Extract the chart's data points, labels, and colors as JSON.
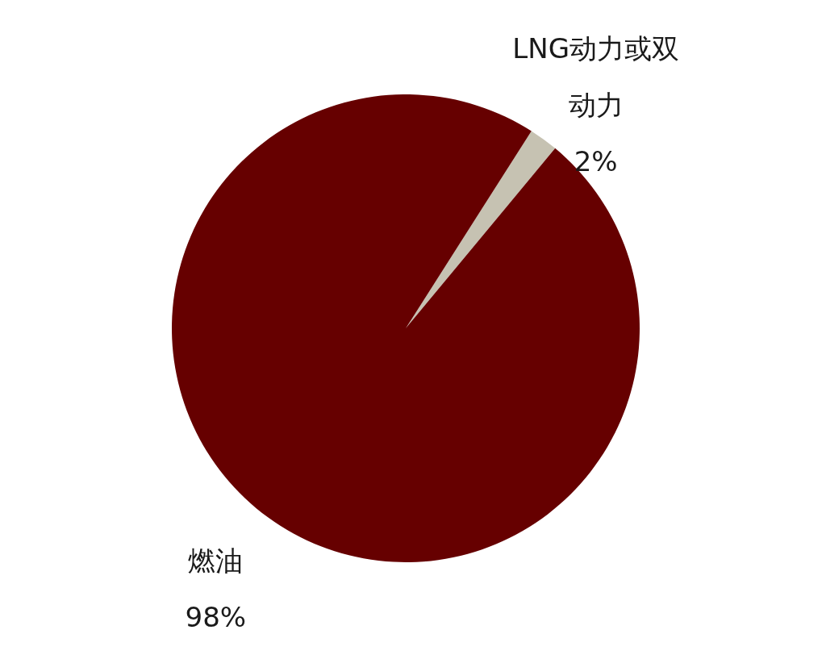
{
  "chart_data": {
    "type": "pie",
    "categories": [
      "LNG动力或双动力",
      "燃油"
    ],
    "values": [
      2,
      98
    ],
    "value_labels": [
      "2%",
      "98%"
    ],
    "colors": [
      "#c6c2b2",
      "#660000"
    ]
  }
}
